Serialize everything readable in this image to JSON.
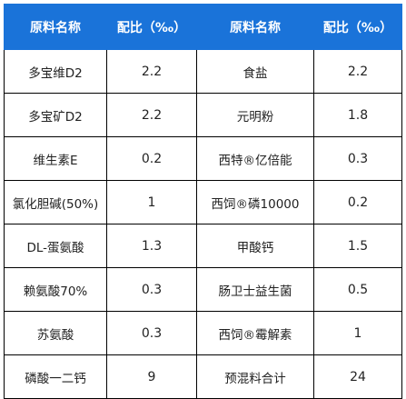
{
  "headers": [
    "原料名称",
    "配比（‰）",
    "原料名称",
    "配比（‰）"
  ],
  "rows": [
    {
      "name1": "多宝维D2",
      "ratio1": "2.2",
      "name2": "食盐",
      "ratio2": "2.2"
    },
    {
      "name1": "多宝矿D2",
      "ratio1": "2.2",
      "name2": "元明粉",
      "ratio2": "1.8"
    },
    {
      "name1": "维生素E",
      "ratio1": "0.2",
      "name2": "西特®亿倍能",
      "ratio2": "0.3"
    },
    {
      "name1": "氯化胆碱(50%)",
      "ratio1": "1",
      "name2": "西饲®磷10000",
      "ratio2": "0.2"
    },
    {
      "name1": "DL-蛋氨酸",
      "ratio1": "1.3",
      "name2": "甲酸钙",
      "ratio2": "1.5"
    },
    {
      "name1": "赖氨酸70%",
      "ratio1": "0.3",
      "name2": "肠卫士益生菌",
      "ratio2": "0.5"
    },
    {
      "name1": "苏氨酸",
      "ratio1": "0.3",
      "name2": "西饲®霉解素",
      "ratio2": "1"
    },
    {
      "name1": "磷酸一二钙",
      "ratio1": "9",
      "name2": "预混料合计",
      "ratio2": "24"
    }
  ],
  "colors": {
    "header_bg": "#1a73d9",
    "header_text": "#ffffff",
    "border": "#000000"
  }
}
